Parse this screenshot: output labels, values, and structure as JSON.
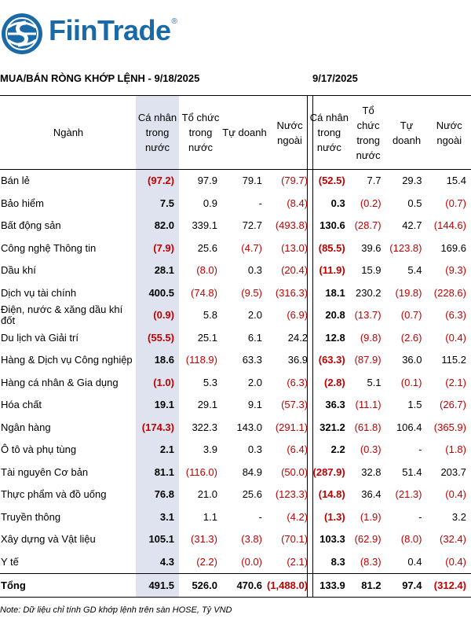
{
  "brand": {
    "name": "FiinTrade",
    "reg": "®",
    "color": "#1a6aa8"
  },
  "title_left": "MUA/BÁN RÒNG KHỚP LỆNH - 9/18/2025",
  "title_right": "9/17/2025",
  "headers": {
    "sector": "Ngành",
    "individual": "Cá nhân trong nước",
    "organization": "Tổ chức trong nước",
    "proprietary": "Tự doanh",
    "foreign": "Nước ngoài"
  },
  "rows": [
    {
      "sector": "Bán lẻ",
      "d1": [
        "(97.2)",
        "97.9",
        "79.1",
        "(79.7)"
      ],
      "d2": [
        "(52.5)",
        "7.7",
        "29.3",
        "15.4"
      ]
    },
    {
      "sector": "Bảo hiểm",
      "d1": [
        "7.5",
        "0.9",
        "-",
        "(8.4)"
      ],
      "d2": [
        "0.3",
        "(0.2)",
        "0.5",
        "(0.7)"
      ]
    },
    {
      "sector": "Bất động sản",
      "d1": [
        "82.0",
        "339.1",
        "72.7",
        "(493.8)"
      ],
      "d2": [
        "130.6",
        "(28.7)",
        "42.7",
        "(144.6)"
      ]
    },
    {
      "sector": "Công nghệ Thông tin",
      "d1": [
        "(7.9)",
        "25.6",
        "(4.7)",
        "(13.0)"
      ],
      "d2": [
        "(85.5)",
        "39.6",
        "(123.8)",
        "169.6"
      ]
    },
    {
      "sector": "Dầu khí",
      "d1": [
        "28.1",
        "(8.0)",
        "0.3",
        "(20.4)"
      ],
      "d2": [
        "(11.9)",
        "15.9",
        "5.4",
        "(9.3)"
      ]
    },
    {
      "sector": "Dịch vụ tài chính",
      "d1": [
        "400.5",
        "(74.8)",
        "(9.5)",
        "(316.3)"
      ],
      "d2": [
        "18.1",
        "230.2",
        "(19.8)",
        "(228.6)"
      ]
    },
    {
      "sector": "Điện, nước & xăng dầu khí đốt",
      "d1": [
        "(0.9)",
        "5.8",
        "2.0",
        "(6.9)"
      ],
      "d2": [
        "20.8",
        "(13.7)",
        "(0.7)",
        "(6.3)"
      ]
    },
    {
      "sector": "Du lịch và Giải trí",
      "d1": [
        "(55.5)",
        "25.1",
        "6.1",
        "24.2"
      ],
      "d2": [
        "12.8",
        "(9.8)",
        "(2.6)",
        "(0.4)"
      ]
    },
    {
      "sector": "Hàng & Dịch vụ Công nghiệp",
      "d1": [
        "18.6",
        "(118.9)",
        "63.3",
        "36.9"
      ],
      "d2": [
        "(63.3)",
        "(87.9)",
        "36.0",
        "115.2"
      ]
    },
    {
      "sector": "Hàng cá nhân & Gia dụng",
      "d1": [
        "(1.0)",
        "5.3",
        "2.0",
        "(6.3)"
      ],
      "d2": [
        "(2.8)",
        "5.1",
        "(0.1)",
        "(2.1)"
      ]
    },
    {
      "sector": "Hóa chất",
      "d1": [
        "19.1",
        "29.1",
        "9.1",
        "(57.3)"
      ],
      "d2": [
        "36.3",
        "(11.1)",
        "1.5",
        "(26.7)"
      ]
    },
    {
      "sector": "Ngân hàng",
      "d1": [
        "(174.3)",
        "322.3",
        "143.0",
        "(291.1)"
      ],
      "d2": [
        "321.2",
        "(61.8)",
        "106.4",
        "(365.9)"
      ]
    },
    {
      "sector": "Ô tô và phụ tùng",
      "d1": [
        "2.1",
        "3.9",
        "0.3",
        "(6.4)"
      ],
      "d2": [
        "2.2",
        "(0.3)",
        "-",
        "(1.8)"
      ]
    },
    {
      "sector": "Tài nguyên Cơ bản",
      "d1": [
        "81.1",
        "(116.0)",
        "84.9",
        "(50.0)"
      ],
      "d2": [
        "(287.9)",
        "32.8",
        "51.4",
        "203.7"
      ]
    },
    {
      "sector": "Thực phẩm và đồ uống",
      "d1": [
        "76.8",
        "21.0",
        "25.6",
        "(123.3)"
      ],
      "d2": [
        "(14.8)",
        "36.4",
        "(21.3)",
        "(0.4)"
      ]
    },
    {
      "sector": "Truyền thông",
      "d1": [
        "3.1",
        "1.1",
        "-",
        "(4.2)"
      ],
      "d2": [
        "(1.3)",
        "(1.9)",
        "-",
        "3.2"
      ]
    },
    {
      "sector": "Xây dựng và Vật liệu",
      "d1": [
        "105.1",
        "(31.3)",
        "(3.8)",
        "(70.1)"
      ],
      "d2": [
        "103.3",
        "(62.9)",
        "(8.0)",
        "(32.4)"
      ]
    },
    {
      "sector": "Y tế",
      "d1": [
        "4.3",
        "(2.2)",
        "(0.0)",
        "(2.1)"
      ],
      "d2": [
        "8.3",
        "(8.3)",
        "0.4",
        "(0.4)"
      ]
    }
  ],
  "total": {
    "label": "Tổng",
    "d1": [
      "491.5",
      "526.0",
      "470.6",
      "(1,488.0)"
    ],
    "d2": [
      "133.9",
      "81.2",
      "97.4",
      "(312.4)"
    ]
  },
  "note": "Note: Dữ liệu chỉ tính GD khớp lệnh trên sàn HOSE, Tỷ VND",
  "colors": {
    "negative": "#c00000",
    "highlight": "#dfe3ef"
  }
}
